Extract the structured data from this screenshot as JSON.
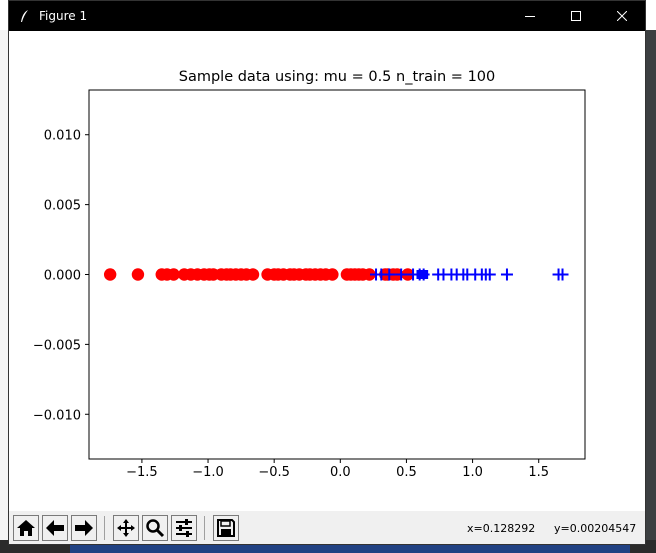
{
  "window": {
    "title": "Figure 1"
  },
  "chart_data": {
    "type": "scatter",
    "title": "Sample data using: mu = 0.5 n_train = 100",
    "xlim": [
      -1.9,
      1.85
    ],
    "ylim": [
      -0.0132,
      0.0132
    ],
    "xticks": [
      -1.5,
      -1.0,
      -0.5,
      0.0,
      0.5,
      1.0,
      1.5
    ],
    "xtick_labels": [
      "−1.5",
      "−1.0",
      "−0.5",
      "0.0",
      "0.5",
      "1.0",
      "1.5"
    ],
    "yticks": [
      0.01,
      0.005,
      0.0,
      -0.005,
      -0.01
    ],
    "ytick_labels": [
      "0.010",
      "0.005",
      "0.000",
      "−0.005",
      "−0.010"
    ],
    "series": [
      {
        "marker": "circle",
        "color": "#ff0000",
        "x": [
          -1.74,
          -1.53,
          -1.35,
          -1.31,
          -1.26,
          -1.18,
          -1.13,
          -1.08,
          -1.03,
          -0.99,
          -0.96,
          -0.9,
          -0.86,
          -0.83,
          -0.79,
          -0.75,
          -0.71,
          -0.66,
          -0.55,
          -0.5,
          -0.47,
          -0.43,
          -0.38,
          -0.35,
          -0.31,
          -0.26,
          -0.23,
          -0.19,
          -0.15,
          -0.11,
          -0.06,
          0.05,
          0.08,
          0.11,
          0.14,
          0.17,
          0.22,
          0.34,
          0.36,
          0.4,
          0.43,
          0.51
        ],
        "y": [
          0,
          0,
          0,
          0,
          0,
          0,
          0,
          0,
          0,
          0,
          0,
          0,
          0,
          0,
          0,
          0,
          0,
          0,
          0,
          0,
          0,
          0,
          0,
          0,
          0,
          0,
          0,
          0,
          0,
          0,
          0,
          0,
          0,
          0,
          0,
          0,
          0,
          0,
          0,
          0,
          0,
          0
        ]
      },
      {
        "marker": "plus",
        "color": "#0000ff",
        "x": [
          0.27,
          0.31,
          0.37,
          0.46,
          0.55,
          0.6,
          0.63,
          0.74,
          0.78,
          0.84,
          0.88,
          0.93,
          0.96,
          1.02,
          1.07,
          1.1,
          1.13,
          1.26,
          1.65,
          1.68
        ],
        "y": [
          0,
          0,
          0,
          0,
          0,
          0,
          0,
          0,
          0,
          0,
          0,
          0,
          0,
          0,
          0,
          0,
          0,
          0,
          0,
          0
        ]
      },
      {
        "marker": "square",
        "color": "#0000ff",
        "x": [
          0.61,
          0.63
        ],
        "y": [
          0,
          0
        ]
      }
    ]
  },
  "toolbar": {
    "buttons": [
      {
        "name": "home-button",
        "icon": "home-icon"
      },
      {
        "name": "back-button",
        "icon": "arrow-left-icon"
      },
      {
        "name": "forward-button",
        "icon": "arrow-right-icon"
      },
      {
        "name": "pan-button",
        "icon": "move-icon"
      },
      {
        "name": "zoom-button",
        "icon": "zoom-icon"
      },
      {
        "name": "configure-button",
        "icon": "sliders-icon"
      },
      {
        "name": "save-button",
        "icon": "save-icon"
      }
    ],
    "x_readout": "x=0.128292",
    "y_readout": "y=0.00204547"
  }
}
